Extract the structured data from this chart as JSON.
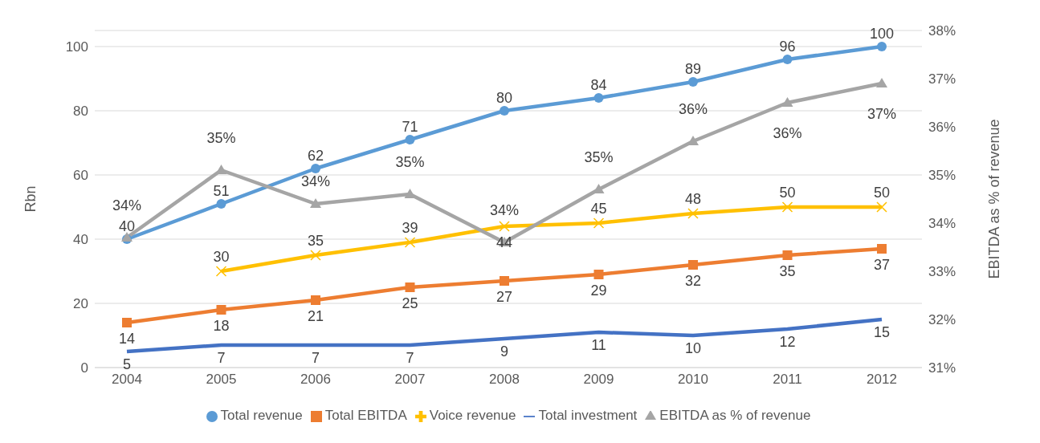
{
  "chart_data": {
    "type": "line",
    "categories": [
      "2004",
      "2005",
      "2006",
      "2007",
      "2008",
      "2009",
      "2010",
      "2011",
      "2012"
    ],
    "ylabel": "Rbn",
    "y2label": "EBITDA as % of revenue",
    "ylim": [
      0,
      105
    ],
    "yticks": [
      0,
      20,
      40,
      60,
      80,
      100
    ],
    "y2lim": [
      31,
      38
    ],
    "y2ticks": [
      {
        "value": 31,
        "label": "31%"
      },
      {
        "value": 32,
        "label": "32%"
      },
      {
        "value": 33,
        "label": "33%"
      },
      {
        "value": 34,
        "label": "34%"
      },
      {
        "value": 35,
        "label": "35%"
      },
      {
        "value": 36,
        "label": "36%"
      },
      {
        "value": 37,
        "label": "37%"
      },
      {
        "value": 38,
        "label": "38%"
      }
    ],
    "grid": "y",
    "legend": "bottom",
    "data_labels": true,
    "series": [
      {
        "name": "Total revenue",
        "color": "#5b9bd5",
        "marker": "circle",
        "values": [
          40,
          51,
          62,
          71,
          80,
          84,
          89,
          96,
          100
        ]
      },
      {
        "name": "Total EBITDA",
        "color": "#ed7d31",
        "marker": "square",
        "values": [
          14,
          18,
          21,
          25,
          27,
          29,
          32,
          35,
          37
        ]
      },
      {
        "name": "Voice revenue",
        "color": "#ffc000",
        "marker": "cross",
        "values": [
          null,
          30,
          35,
          39,
          44,
          45,
          48,
          50,
          50
        ]
      },
      {
        "name": "Total investment",
        "color": "#4472c4",
        "marker": "none",
        "values": [
          5,
          7,
          7,
          7,
          9,
          11,
          10,
          12,
          15
        ]
      },
      {
        "name": "EBITDA as % of revenue",
        "color": "#a5a5a5",
        "marker": "triangle",
        "axis": "y2",
        "values": [
          33.7,
          35.1,
          34.4,
          34.6,
          33.6,
          34.7,
          35.7,
          36.5,
          36.9
        ],
        "value_labels": [
          "34%",
          "35%",
          "34%",
          "35%",
          "34%",
          "35%",
          "36%",
          "36%",
          "37%"
        ]
      }
    ]
  }
}
